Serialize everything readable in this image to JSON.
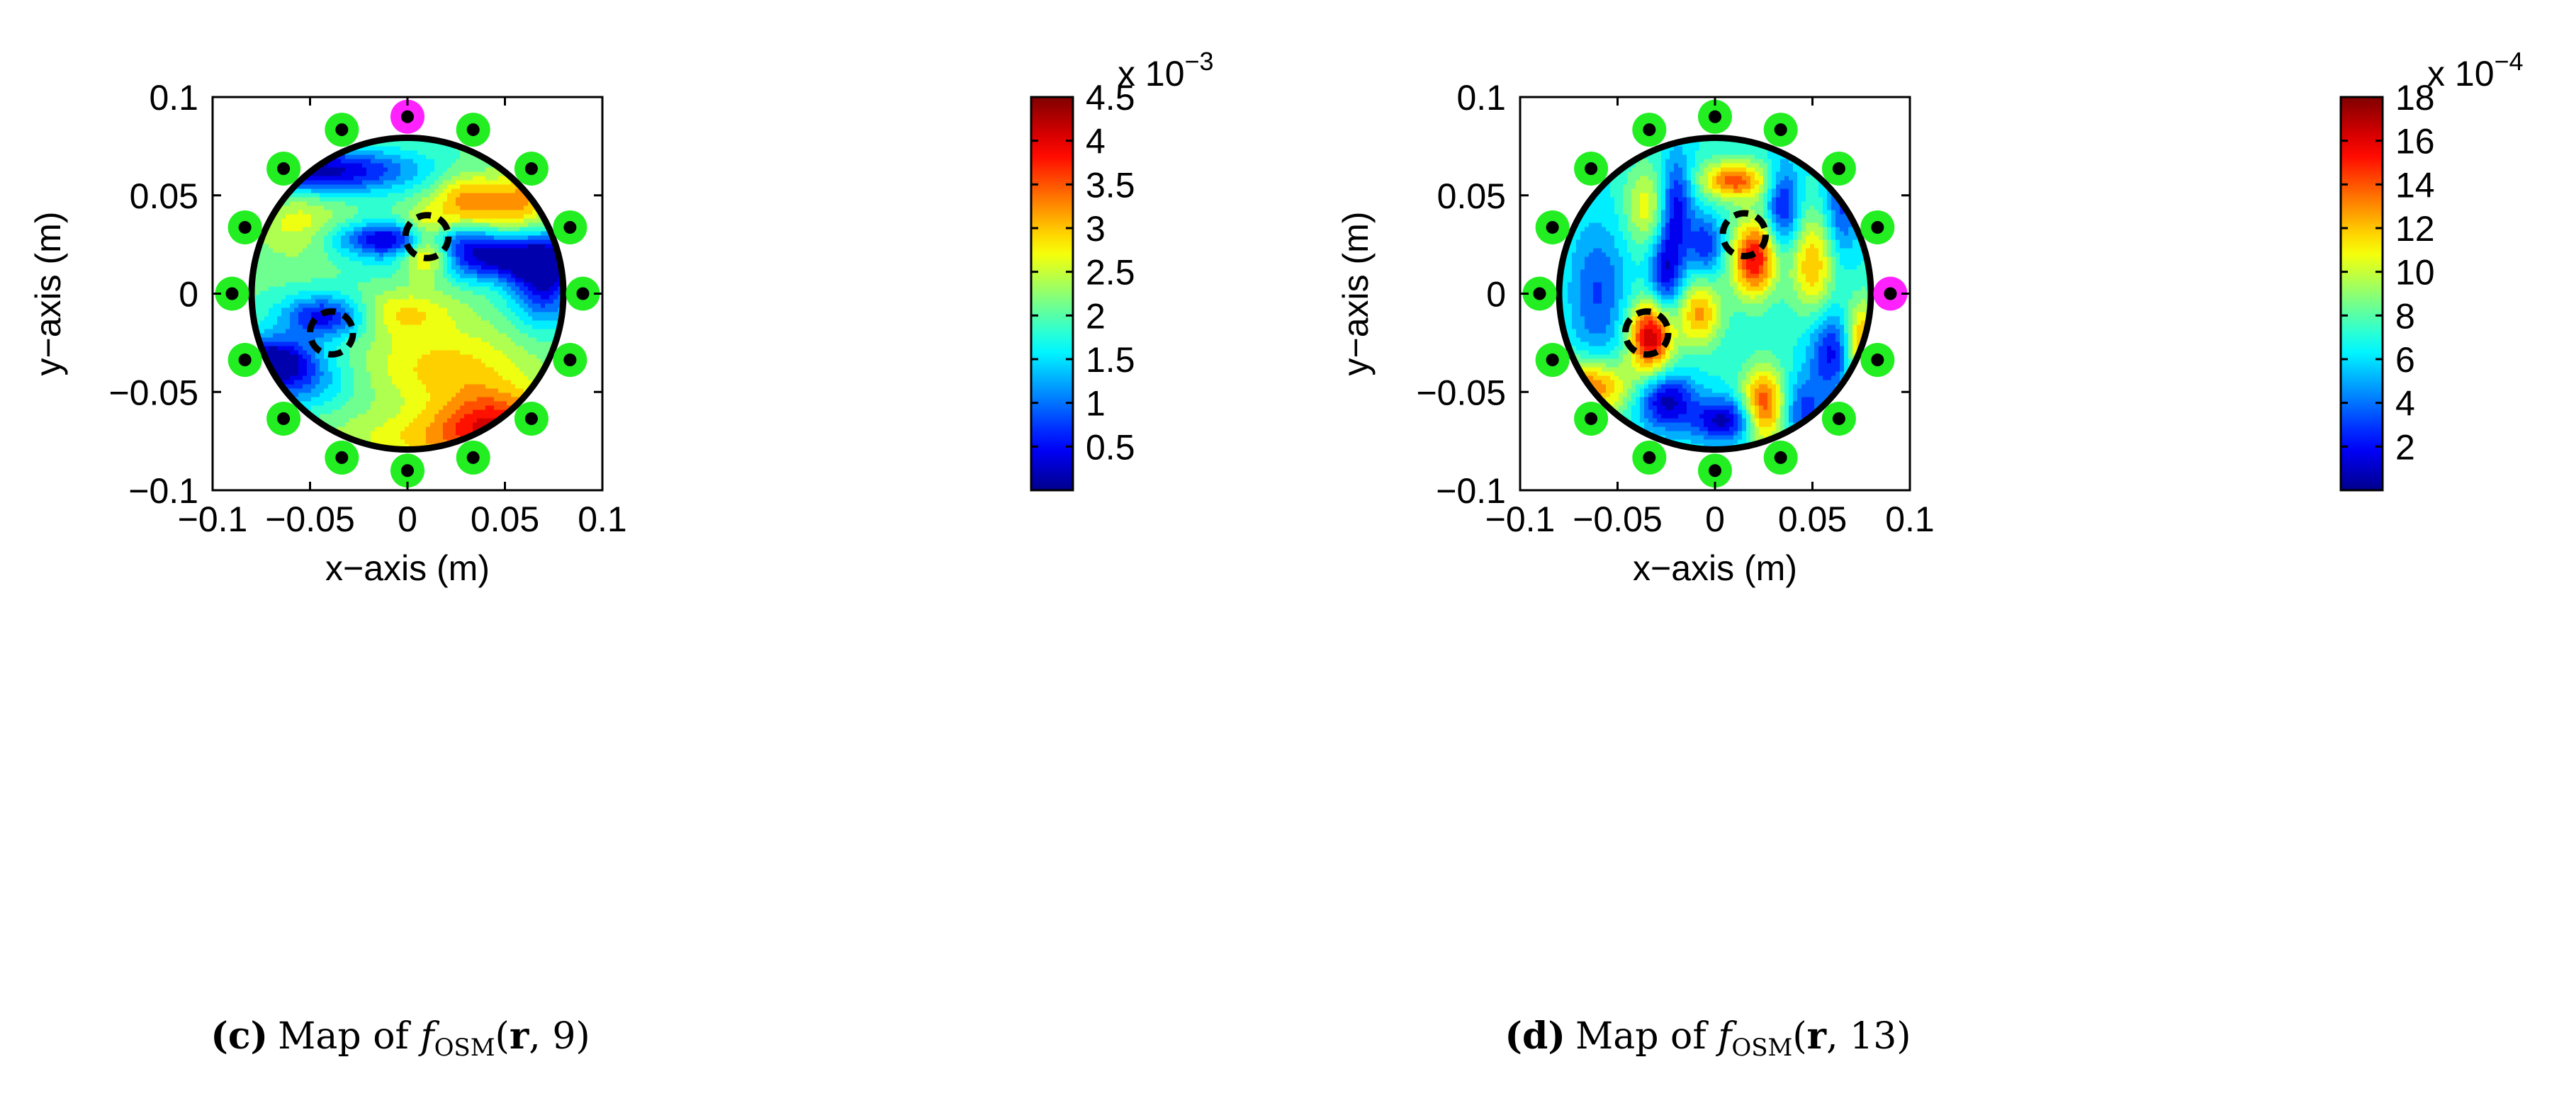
{
  "chart_data": [
    {
      "type": "heatmap",
      "subfigure_label": "(c)",
      "caption": {
        "prefix": "Map of ",
        "func": "f",
        "sub": "OSM",
        "arg_r": "r",
        "arg_n": "9"
      },
      "xlabel": "x−axis (m)",
      "ylabel": "y−axis (m)",
      "xlim": [
        -0.1,
        0.1
      ],
      "ylim": [
        -0.1,
        0.1
      ],
      "xticks": [
        -0.1,
        -0.05,
        0,
        0.05,
        0.1
      ],
      "xtick_labels": [
        "−0.1",
        "−0.05",
        "0",
        "0.05",
        "0.1"
      ],
      "yticks": [
        0.1,
        0.05,
        0,
        -0.05,
        -0.1
      ],
      "ytick_labels": [
        "0.1",
        "0.05",
        "0",
        "−0.05",
        "−0.1"
      ],
      "domain_radius": 0.08,
      "colorbar": {
        "min": 0,
        "max": 0.0045,
        "exponent_label": "x 10",
        "exponent": "−3",
        "ticks": [
          4.5,
          4,
          3.5,
          3,
          2.5,
          2,
          1.5,
          1,
          0.5
        ],
        "tick_labels": [
          "4.5",
          "4",
          "3.5",
          "3",
          "2.5",
          "2",
          "1.5",
          "1",
          "0.5"
        ],
        "scale_max": 4.5
      },
      "field_background": 0.45,
      "field_features": [
        {
          "x": 0.01,
          "y": 0.024,
          "amp": 0.55,
          "sx": 0.01,
          "sy": 0.01
        },
        {
          "x": 0.0,
          "y": 0.028,
          "amp": -0.45,
          "sx": 0.025,
          "sy": 0.006
        },
        {
          "x": 0.03,
          "y": 0.048,
          "amp": 0.25,
          "sx": 0.012,
          "sy": 0.01
        },
        {
          "x": 0.055,
          "y": 0.045,
          "amp": 0.22,
          "sx": 0.012,
          "sy": 0.01
        },
        {
          "x": -0.045,
          "y": 0.063,
          "amp": -0.42,
          "sx": 0.035,
          "sy": 0.008
        },
        {
          "x": 0.05,
          "y": 0.018,
          "amp": -0.4,
          "sx": 0.035,
          "sy": 0.008
        },
        {
          "x": 0.07,
          "y": 0.005,
          "amp": -0.35,
          "sx": 0.012,
          "sy": 0.015
        },
        {
          "x": -0.042,
          "y": -0.012,
          "amp": -0.38,
          "sx": 0.016,
          "sy": 0.008
        },
        {
          "x": -0.07,
          "y": -0.033,
          "amp": -0.4,
          "sx": 0.015,
          "sy": 0.008
        },
        {
          "x": -0.06,
          "y": -0.045,
          "amp": -0.25,
          "sx": 0.02,
          "sy": 0.01
        },
        {
          "x": 0.02,
          "y": -0.038,
          "amp": 0.2,
          "sx": 0.03,
          "sy": 0.015
        },
        {
          "x": 0.045,
          "y": -0.065,
          "amp": 0.3,
          "sx": 0.02,
          "sy": 0.012
        },
        {
          "x": 0.025,
          "y": -0.075,
          "amp": 0.2,
          "sx": 0.04,
          "sy": 0.01
        },
        {
          "x": -0.055,
          "y": 0.035,
          "amp": 0.15,
          "sx": 0.015,
          "sy": 0.012
        },
        {
          "x": -0.005,
          "y": -0.01,
          "amp": 0.18,
          "sx": 0.02,
          "sy": 0.008
        },
        {
          "x": 0.07,
          "y": 0.06,
          "amp": 0.2,
          "sx": 0.01,
          "sy": 0.01
        }
      ],
      "targets": [
        {
          "x": 0.01,
          "y": 0.029,
          "r": 0.011
        },
        {
          "x": -0.039,
          "y": -0.02,
          "r": 0.011
        }
      ],
      "antennas": [
        {
          "x": 0.0,
          "y": 0.09,
          "role": "transmitter"
        },
        {
          "x": 0.0337,
          "y": 0.0834,
          "role": "receiver"
        },
        {
          "x": 0.0636,
          "y": 0.0636,
          "role": "receiver"
        },
        {
          "x": 0.0834,
          "y": 0.0337,
          "role": "receiver"
        },
        {
          "x": 0.09,
          "y": 0.0,
          "role": "receiver"
        },
        {
          "x": 0.0834,
          "y": -0.0337,
          "role": "receiver"
        },
        {
          "x": 0.0636,
          "y": -0.0636,
          "role": "receiver"
        },
        {
          "x": 0.0337,
          "y": -0.0834,
          "role": "receiver"
        },
        {
          "x": 0.0,
          "y": -0.09,
          "role": "receiver"
        },
        {
          "x": -0.0337,
          "y": -0.0834,
          "role": "receiver"
        },
        {
          "x": -0.0636,
          "y": -0.0636,
          "role": "receiver"
        },
        {
          "x": -0.0834,
          "y": -0.0337,
          "role": "receiver"
        },
        {
          "x": -0.09,
          "y": 0.0,
          "role": "receiver"
        },
        {
          "x": -0.0834,
          "y": 0.0337,
          "role": "receiver"
        },
        {
          "x": -0.0636,
          "y": 0.0636,
          "role": "receiver"
        },
        {
          "x": -0.0337,
          "y": 0.0834,
          "role": "receiver"
        }
      ]
    },
    {
      "type": "heatmap",
      "subfigure_label": "(d)",
      "caption": {
        "prefix": "Map of ",
        "func": "f",
        "sub": "OSM",
        "arg_r": "r",
        "arg_n": "13"
      },
      "xlabel": "x−axis (m)",
      "ylabel": "y−axis (m)",
      "xlim": [
        -0.1,
        0.1
      ],
      "ylim": [
        -0.1,
        0.1
      ],
      "xticks": [
        -0.1,
        -0.05,
        0,
        0.05,
        0.1
      ],
      "xtick_labels": [
        "−0.1",
        "−0.05",
        "0",
        "0.05",
        "0.1"
      ],
      "yticks": [
        0.1,
        0.05,
        0,
        -0.05,
        -0.1
      ],
      "ytick_labels": [
        "0.1",
        "0.05",
        "0",
        "−0.05",
        "−0.1"
      ],
      "domain_radius": 0.08,
      "colorbar": {
        "min": 0,
        "max": 0.0018,
        "exponent_label": "x 10",
        "exponent": "−4",
        "ticks": [
          18,
          16,
          14,
          12,
          10,
          8,
          6,
          4,
          2
        ],
        "tick_labels": [
          "18",
          "16",
          "14",
          "12",
          "10",
          "8",
          "6",
          "4",
          "2"
        ],
        "scale_max": 18
      },
      "field_background": 0.38,
      "field_features": [
        {
          "x": -0.033,
          "y": -0.022,
          "amp": 0.55,
          "sx": 0.008,
          "sy": 0.013
        },
        {
          "x": 0.02,
          "y": 0.018,
          "amp": 0.5,
          "sx": 0.008,
          "sy": 0.014
        },
        {
          "x": 0.025,
          "y": -0.058,
          "amp": 0.45,
          "sx": 0.008,
          "sy": 0.014
        },
        {
          "x": 0.01,
          "y": 0.058,
          "amp": 0.4,
          "sx": 0.012,
          "sy": 0.007
        },
        {
          "x": -0.065,
          "y": -0.048,
          "amp": 0.4,
          "sx": 0.015,
          "sy": 0.01
        },
        {
          "x": 0.05,
          "y": 0.015,
          "amp": 0.3,
          "sx": 0.008,
          "sy": 0.018
        },
        {
          "x": -0.008,
          "y": -0.01,
          "amp": 0.32,
          "sx": 0.008,
          "sy": 0.012
        },
        {
          "x": 0.075,
          "y": -0.025,
          "amp": 0.35,
          "sx": 0.006,
          "sy": 0.015
        },
        {
          "x": -0.035,
          "y": 0.045,
          "amp": 0.22,
          "sx": 0.008,
          "sy": 0.015
        },
        {
          "x": -0.025,
          "y": -0.055,
          "amp": -0.35,
          "sx": 0.01,
          "sy": 0.01
        },
        {
          "x": 0.005,
          "y": -0.065,
          "amp": -0.35,
          "sx": 0.012,
          "sy": 0.008
        },
        {
          "x": -0.02,
          "y": 0.045,
          "amp": -0.3,
          "sx": 0.006,
          "sy": 0.018
        },
        {
          "x": -0.025,
          "y": 0.01,
          "amp": -0.3,
          "sx": 0.006,
          "sy": 0.015
        },
        {
          "x": 0.035,
          "y": 0.045,
          "amp": -0.28,
          "sx": 0.006,
          "sy": 0.015
        },
        {
          "x": 0.06,
          "y": -0.03,
          "amp": -0.28,
          "sx": 0.008,
          "sy": 0.015
        },
        {
          "x": 0.045,
          "y": -0.06,
          "amp": -0.22,
          "sx": 0.008,
          "sy": 0.012
        },
        {
          "x": -0.005,
          "y": 0.025,
          "amp": -0.25,
          "sx": 0.006,
          "sy": 0.01
        },
        {
          "x": 0.065,
          "y": 0.045,
          "amp": -0.22,
          "sx": 0.006,
          "sy": 0.018
        },
        {
          "x": -0.06,
          "y": 0.0,
          "amp": -0.2,
          "sx": 0.01,
          "sy": 0.025
        }
      ],
      "targets": [
        {
          "x": 0.015,
          "y": 0.03,
          "r": 0.011
        },
        {
          "x": -0.035,
          "y": -0.02,
          "r": 0.011
        }
      ],
      "antennas": [
        {
          "x": 0.0,
          "y": 0.09,
          "role": "receiver"
        },
        {
          "x": 0.0337,
          "y": 0.0834,
          "role": "receiver"
        },
        {
          "x": 0.0636,
          "y": 0.0636,
          "role": "receiver"
        },
        {
          "x": 0.0834,
          "y": 0.0337,
          "role": "receiver"
        },
        {
          "x": 0.09,
          "y": 0.0,
          "role": "transmitter"
        },
        {
          "x": 0.0834,
          "y": -0.0337,
          "role": "receiver"
        },
        {
          "x": 0.0636,
          "y": -0.0636,
          "role": "receiver"
        },
        {
          "x": 0.0337,
          "y": -0.0834,
          "role": "receiver"
        },
        {
          "x": 0.0,
          "y": -0.09,
          "role": "receiver"
        },
        {
          "x": -0.0337,
          "y": -0.0834,
          "role": "receiver"
        },
        {
          "x": -0.0636,
          "y": -0.0636,
          "role": "receiver"
        },
        {
          "x": -0.0834,
          "y": -0.0337,
          "role": "receiver"
        },
        {
          "x": -0.09,
          "y": 0.0,
          "role": "receiver"
        },
        {
          "x": -0.0834,
          "y": 0.0337,
          "role": "receiver"
        },
        {
          "x": -0.0636,
          "y": 0.0636,
          "role": "receiver"
        },
        {
          "x": -0.0337,
          "y": 0.0834,
          "role": "receiver"
        }
      ]
    }
  ],
  "colors": {
    "receiver_ring": "#22ee22",
    "transmitter_ring": "#ff22ff",
    "antenna_dot": "#000000",
    "domain_boundary": "#000000",
    "target_outline": "#000000"
  }
}
